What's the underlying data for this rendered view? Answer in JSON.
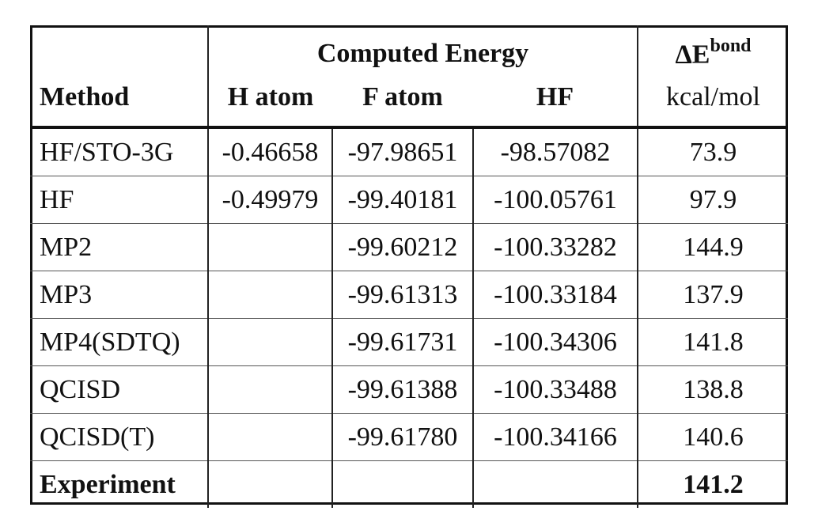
{
  "header": {
    "group_label": "Computed Energy",
    "delta_label": "ΔE",
    "delta_sup": "bond",
    "method_label": "Method",
    "col_h_atom": "H atom",
    "col_f_atom": "F atom",
    "col_hf": "HF",
    "unit_label": "kcal/mol"
  },
  "rows": [
    {
      "method": "HF/STO-3G",
      "h_atom": "-0.46658",
      "f_atom": "-97.98651",
      "hf": "-98.57082",
      "de": "73.9"
    },
    {
      "method": "HF",
      "h_atom": "-0.49979",
      "f_atom": "-99.40181",
      "hf": "-100.05761",
      "de": "97.9"
    },
    {
      "method": "MP2",
      "h_atom": "",
      "f_atom": "-99.60212",
      "hf": "-100.33282",
      "de": "144.9"
    },
    {
      "method": "MP3",
      "h_atom": "",
      "f_atom": "-99.61313",
      "hf": "-100.33184",
      "de": "137.9"
    },
    {
      "method": "MP4(SDTQ)",
      "h_atom": "",
      "f_atom": "-99.61731",
      "hf": "-100.34306",
      "de": "141.8"
    },
    {
      "method": "QCISD",
      "h_atom": "",
      "f_atom": "-99.61388",
      "hf": "-100.33488",
      "de": "138.8"
    },
    {
      "method": "QCISD(T)",
      "h_atom": "",
      "f_atom": "-99.61780",
      "hf": "-100.34166",
      "de": "140.6"
    },
    {
      "method": "Experiment",
      "h_atom": "",
      "f_atom": "",
      "hf": "",
      "de": "141.2"
    }
  ]
}
